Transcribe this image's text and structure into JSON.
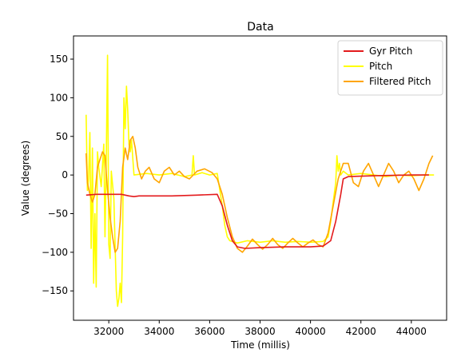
{
  "chart_data": {
    "type": "line",
    "title": "Data",
    "xlabel": "Time (millis)",
    "ylabel": "Value (degrees)",
    "xlim": [
      30600,
      45400
    ],
    "ylim": [
      -188,
      180
    ],
    "xticks": [
      32000,
      34000,
      36000,
      38000,
      40000,
      42000,
      44000
    ],
    "yticks": [
      -150,
      -100,
      -50,
      0,
      50,
      100,
      150
    ],
    "legend_position": "top-right",
    "grid": false,
    "series": [
      {
        "name": "Gyr Pitch",
        "color": "#e31a1c",
        "points": [
          [
            31100,
            -26
          ],
          [
            31500,
            -25
          ],
          [
            32000,
            -25
          ],
          [
            32500,
            -25
          ],
          [
            32800,
            -27
          ],
          [
            33000,
            -28
          ],
          [
            33200,
            -27
          ],
          [
            33500,
            -27
          ],
          [
            34500,
            -27
          ],
          [
            35500,
            -26
          ],
          [
            36300,
            -25
          ],
          [
            36500,
            -40
          ],
          [
            36700,
            -65
          ],
          [
            36900,
            -85
          ],
          [
            37100,
            -93
          ],
          [
            37400,
            -95
          ],
          [
            38000,
            -94
          ],
          [
            39000,
            -93
          ],
          [
            40000,
            -93
          ],
          [
            40500,
            -92
          ],
          [
            40800,
            -85
          ],
          [
            41000,
            -60
          ],
          [
            41200,
            -25
          ],
          [
            41300,
            -5
          ],
          [
            41500,
            -2
          ],
          [
            42500,
            -1
          ],
          [
            44000,
            0
          ],
          [
            44700,
            0
          ]
        ]
      },
      {
        "name": "Pitch",
        "color": "#ffff00",
        "points": [
          [
            31100,
            78
          ],
          [
            31150,
            -20
          ],
          [
            31200,
            -5
          ],
          [
            31250,
            55
          ],
          [
            31300,
            -95
          ],
          [
            31350,
            35
          ],
          [
            31400,
            -140
          ],
          [
            31450,
            -50
          ],
          [
            31500,
            -145
          ],
          [
            31550,
            30
          ],
          [
            31600,
            10
          ],
          [
            31700,
            -15
          ],
          [
            31800,
            40
          ],
          [
            31850,
            -80
          ],
          [
            31900,
            20
          ],
          [
            31950,
            155
          ],
          [
            32000,
            -90
          ],
          [
            32050,
            -108
          ],
          [
            32100,
            5
          ],
          [
            32200,
            -30
          ],
          [
            32300,
            -150
          ],
          [
            32350,
            -170
          ],
          [
            32400,
            -160
          ],
          [
            32450,
            -140
          ],
          [
            32500,
            -165
          ],
          [
            32550,
            -80
          ],
          [
            32600,
            100
          ],
          [
            32650,
            60
          ],
          [
            32700,
            115
          ],
          [
            32750,
            85
          ],
          [
            32800,
            40
          ],
          [
            32850,
            30
          ],
          [
            32900,
            45
          ],
          [
            33000,
            0
          ],
          [
            33500,
            2
          ],
          [
            34000,
            0
          ],
          [
            34500,
            2
          ],
          [
            35000,
            -2
          ],
          [
            35300,
            0
          ],
          [
            35350,
            25
          ],
          [
            35400,
            0
          ],
          [
            35700,
            3
          ],
          [
            36000,
            0
          ],
          [
            36300,
            2
          ],
          [
            36500,
            -40
          ],
          [
            36600,
            -65
          ],
          [
            36700,
            -80
          ],
          [
            36800,
            -85
          ],
          [
            37100,
            -88
          ],
          [
            37500,
            -85
          ],
          [
            38000,
            -87
          ],
          [
            38500,
            -85
          ],
          [
            39000,
            -87
          ],
          [
            39500,
            -86
          ],
          [
            40000,
            -87
          ],
          [
            40500,
            -86
          ],
          [
            40700,
            -80
          ],
          [
            40800,
            -60
          ],
          [
            40900,
            -35
          ],
          [
            41000,
            -10
          ],
          [
            41050,
            25
          ],
          [
            41100,
            5
          ],
          [
            41150,
            15
          ],
          [
            41200,
            0
          ],
          [
            41300,
            5
          ],
          [
            41500,
            0
          ],
          [
            42000,
            2
          ],
          [
            42500,
            0
          ],
          [
            43000,
            -2
          ],
          [
            43500,
            0
          ],
          [
            44000,
            -1
          ],
          [
            44500,
            0
          ],
          [
            44900,
            0
          ]
        ]
      },
      {
        "name": "Filtered Pitch",
        "color": "#ffa500",
        "points": [
          [
            31100,
            28
          ],
          [
            31150,
            -10
          ],
          [
            31250,
            -25
          ],
          [
            31350,
            -35
          ],
          [
            31450,
            -25
          ],
          [
            31550,
            10
          ],
          [
            31650,
            20
          ],
          [
            31750,
            30
          ],
          [
            31850,
            25
          ],
          [
            31950,
            -20
          ],
          [
            32050,
            -55
          ],
          [
            32150,
            -80
          ],
          [
            32250,
            -100
          ],
          [
            32350,
            -95
          ],
          [
            32450,
            -60
          ],
          [
            32550,
            10
          ],
          [
            32650,
            35
          ],
          [
            32750,
            20
          ],
          [
            32850,
            45
          ],
          [
            32950,
            50
          ],
          [
            33050,
            35
          ],
          [
            33150,
            10
          ],
          [
            33300,
            -5
          ],
          [
            33450,
            5
          ],
          [
            33600,
            10
          ],
          [
            33800,
            -5
          ],
          [
            34000,
            -10
          ],
          [
            34200,
            5
          ],
          [
            34400,
            10
          ],
          [
            34600,
            0
          ],
          [
            34800,
            5
          ],
          [
            35000,
            -2
          ],
          [
            35200,
            -5
          ],
          [
            35500,
            5
          ],
          [
            35800,
            8
          ],
          [
            36100,
            3
          ],
          [
            36300,
            -5
          ],
          [
            36500,
            -25
          ],
          [
            36700,
            -55
          ],
          [
            36900,
            -80
          ],
          [
            37100,
            -95
          ],
          [
            37300,
            -100
          ],
          [
            37500,
            -92
          ],
          [
            37700,
            -83
          ],
          [
            37900,
            -90
          ],
          [
            38100,
            -96
          ],
          [
            38300,
            -90
          ],
          [
            38500,
            -82
          ],
          [
            38700,
            -90
          ],
          [
            38900,
            -95
          ],
          [
            39100,
            -88
          ],
          [
            39300,
            -82
          ],
          [
            39500,
            -88
          ],
          [
            39700,
            -93
          ],
          [
            39900,
            -88
          ],
          [
            40100,
            -84
          ],
          [
            40300,
            -90
          ],
          [
            40500,
            -93
          ],
          [
            40700,
            -75
          ],
          [
            40900,
            -40
          ],
          [
            41100,
            -5
          ],
          [
            41300,
            15
          ],
          [
            41500,
            15
          ],
          [
            41700,
            -10
          ],
          [
            41900,
            -15
          ],
          [
            42100,
            5
          ],
          [
            42300,
            15
          ],
          [
            42500,
            0
          ],
          [
            42700,
            -15
          ],
          [
            42900,
            0
          ],
          [
            43100,
            15
          ],
          [
            43300,
            5
          ],
          [
            43500,
            -10
          ],
          [
            43700,
            0
          ],
          [
            43900,
            5
          ],
          [
            44100,
            -5
          ],
          [
            44300,
            -20
          ],
          [
            44500,
            -5
          ],
          [
            44700,
            15
          ],
          [
            44850,
            25
          ]
        ]
      }
    ]
  }
}
